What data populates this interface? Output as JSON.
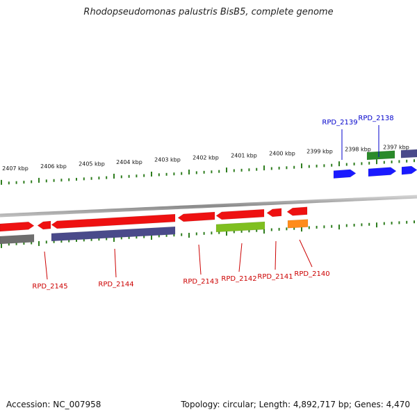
{
  "title": "Rhodopseudomonas palustris BisB5, complete genome",
  "footer": {
    "accession": "Accession: NC_007958",
    "summary": "Topology: circular; Length: 4,892,717 bp; Genes: 4,470"
  },
  "scale": {
    "unit": "kbp",
    "ticks": [
      "2407 kbp",
      "2406 kbp",
      "2405 kbp",
      "2404 kbp",
      "2403 kbp",
      "2402 kbp",
      "2401 kbp",
      "2400 kbp",
      "2399 kbp",
      "2398 kbp",
      "2397 kbp"
    ]
  },
  "colors": {
    "backbone": "#8a8a8a",
    "tick": "#2e7d1e",
    "red_gene": "#ee1111",
    "blue_gene": "#1a1aff",
    "green_gene": "#2a8a2a",
    "purple_gene": "#4a4a8a",
    "gray_gene": "#6e6e6e",
    "olive_gene": "#7fbf20",
    "orange_gene": "#ff8c1a",
    "red_label": "#cc0000",
    "blue_label": "#0000cc"
  },
  "gene_labels": {
    "top": [
      "RPD_2139",
      "RPD_2138"
    ],
    "bottom": [
      "RPD_2145",
      "RPD_2144",
      "RPD_2143",
      "RPD_2142",
      "RPD_2141",
      "RPD_2140"
    ]
  }
}
